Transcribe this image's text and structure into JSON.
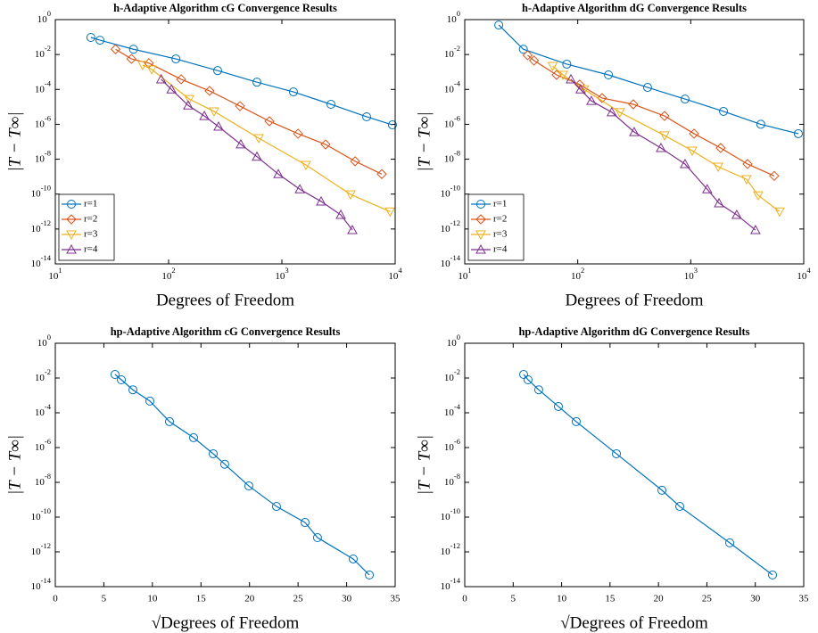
{
  "chart_data": [
    {
      "type": "line",
      "title": "h-Adaptive Algorithm cG Convergence Results",
      "xlabel": "Degrees of Freedom",
      "ylabel": "|T − T∞|",
      "xscale": "log",
      "yscale": "log",
      "xlim": [
        10,
        10000
      ],
      "ylim": [
        1e-14,
        1
      ],
      "xticks": [
        {
          "value": 10,
          "label": "10",
          "exponent": "1"
        },
        {
          "value": 100,
          "label": "10",
          "exponent": "2"
        },
        {
          "value": 1000,
          "label": "10",
          "exponent": "3"
        },
        {
          "value": 10000,
          "label": "10",
          "exponent": "4"
        }
      ],
      "yticks": [
        {
          "value": 1,
          "label": "10",
          "exponent": "0"
        },
        {
          "value": 0.01,
          "label": "10",
          "exponent": "-2"
        },
        {
          "value": 0.0001,
          "label": "10",
          "exponent": "-4"
        },
        {
          "value": 1e-06,
          "label": "10",
          "exponent": "-6"
        },
        {
          "value": 1e-08,
          "label": "10",
          "exponent": "-8"
        },
        {
          "value": 1e-10,
          "label": "10",
          "exponent": "-10"
        },
        {
          "value": 1e-12,
          "label": "10",
          "exponent": "-12"
        },
        {
          "value": 1e-14,
          "label": "10",
          "exponent": "-14"
        }
      ],
      "legend": "lower left",
      "series": [
        {
          "name": "r=1",
          "color": "#0072BD",
          "marker": "circle",
          "x": [
            20.6,
            24.8,
            49,
            116,
            271,
            602,
            1265,
            2710,
            5600,
            9460
          ],
          "values": [
            0.095,
            0.066,
            0.02,
            0.0056,
            0.0012,
            0.00026,
            7.2e-05,
            1.4e-05,
            2.7e-06,
            9.3e-07
          ]
        },
        {
          "name": "r=2",
          "color": "#D95319",
          "marker": "diamond",
          "x": [
            34,
            47,
            67,
            129,
            230,
            427,
            776,
            1390,
            2430,
            4430,
            7620
          ],
          "values": [
            0.02,
            0.0056,
            0.0032,
            0.00038,
            8.2e-05,
            1.1e-05,
            1.5e-06,
            2.9e-07,
            7e-08,
            7.6e-09,
            1.4e-09
          ]
        },
        {
          "name": "r=3",
          "color": "#EDB120",
          "marker": "triangle-down",
          "x": [
            59,
            71,
            152,
            252,
            624,
            1630,
            4040,
            9000
          ],
          "values": [
            0.0025,
            0.0014,
            2.8e-05,
            5.5e-06,
            1.6e-07,
            4.7e-09,
            9.6e-11,
            1e-11
          ]
        },
        {
          "name": "r=4",
          "color": "#7E2F8E",
          "marker": "triangle-up",
          "x": [
            86,
            106,
            149,
            207,
            276,
            434,
            602,
            931,
            1440,
            2220,
            3310,
            4190
          ],
          "values": [
            0.00038,
            0.0001,
            1.2e-05,
            3e-06,
            7.4e-07,
            7.1e-08,
            1.4e-08,
            1.4e-09,
            1.9e-10,
            3.8e-11,
            6.5e-12,
            8.7e-13
          ]
        }
      ]
    },
    {
      "type": "line",
      "title": "h-Adaptive Algorithm dG Convergence Results",
      "xlabel": "Degrees of Freedom",
      "ylabel": "|T − T∞|",
      "xscale": "log",
      "yscale": "log",
      "xlim": [
        10,
        10000
      ],
      "ylim": [
        1e-14,
        1
      ],
      "xticks": [
        {
          "value": 10,
          "label": "10",
          "exponent": "1"
        },
        {
          "value": 100,
          "label": "10",
          "exponent": "2"
        },
        {
          "value": 1000,
          "label": "10",
          "exponent": "3"
        },
        {
          "value": 10000,
          "label": "10",
          "exponent": "4"
        }
      ],
      "yticks": [
        {
          "value": 1,
          "label": "10",
          "exponent": "0"
        },
        {
          "value": 0.01,
          "label": "10",
          "exponent": "-2"
        },
        {
          "value": 0.0001,
          "label": "10",
          "exponent": "-4"
        },
        {
          "value": 1e-06,
          "label": "10",
          "exponent": "-6"
        },
        {
          "value": 1e-08,
          "label": "10",
          "exponent": "-8"
        },
        {
          "value": 1e-10,
          "label": "10",
          "exponent": "-10"
        },
        {
          "value": 1e-12,
          "label": "10",
          "exponent": "-12"
        },
        {
          "value": 1e-14,
          "label": "10",
          "exponent": "-14"
        }
      ],
      "legend": "lower left",
      "series": [
        {
          "name": "r=1",
          "color": "#0072BD",
          "marker": "circle",
          "x": [
            20,
            33,
            80,
            187,
            415,
            890,
            1950,
            4170,
            8960
          ],
          "values": [
            0.49,
            0.02,
            0.0028,
            0.00068,
            0.00013,
            2.8e-05,
            5.5e-06,
            1e-06,
            2.9e-07
          ]
        },
        {
          "name": "r=2",
          "color": "#D95319",
          "marker": "diamond",
          "x": [
            36,
            41,
            65,
            104,
            164,
            310,
            586,
            1070,
            1840,
            3180,
            5480
          ],
          "values": [
            0.0091,
            0.0045,
            0.00068,
            0.00019,
            3.2e-05,
            1.4e-05,
            3e-06,
            2.9e-07,
            4.4e-08,
            5.3e-09,
            1.1e-09
          ]
        },
        {
          "name": "r=3",
          "color": "#EDB120",
          "marker": "triangle-down",
          "x": [
            60,
            74,
            114,
            236,
            586,
            1030,
            1750,
            3120,
            3950,
            6110
          ],
          "values": [
            0.0022,
            0.00068,
            0.0001,
            4.9e-06,
            2.3e-07,
            3.1e-08,
            3.7e-09,
            7.1e-10,
            8.5e-11,
            1e-11
          ]
        },
        {
          "name": "r=4",
          "color": "#7E2F8E",
          "marker": "triangle-up",
          "x": [
            87,
            106,
            132,
            200,
            316,
            545,
            890,
            1400,
            1780,
            2550,
            3740
          ],
          "values": [
            0.00038,
            0.0001,
            2.2e-05,
            4.9e-06,
            3.6e-07,
            4.4e-08,
            5.3e-09,
            1.9e-10,
            3e-11,
            6.5e-12,
            8.7e-13
          ]
        }
      ]
    },
    {
      "type": "line",
      "title": "hp-Adaptive Algorithm cG Convergence Results",
      "xlabel": "√Degrees of Freedom",
      "ylabel": "|T − T∞|",
      "yscale": "log",
      "xlim": [
        0,
        35
      ],
      "ylim": [
        1e-14,
        1
      ],
      "xticks": [
        0,
        5,
        10,
        15,
        20,
        25,
        30,
        35
      ],
      "yticks": [
        {
          "value": 1,
          "label": "10",
          "exponent": "0"
        },
        {
          "value": 0.01,
          "label": "10",
          "exponent": "-2"
        },
        {
          "value": 0.0001,
          "label": "10",
          "exponent": "-4"
        },
        {
          "value": 1e-06,
          "label": "10",
          "exponent": "-6"
        },
        {
          "value": 1e-08,
          "label": "10",
          "exponent": "-8"
        },
        {
          "value": 1e-10,
          "label": "10",
          "exponent": "-10"
        },
        {
          "value": 1e-12,
          "label": "10",
          "exponent": "-12"
        },
        {
          "value": 1e-14,
          "label": "10",
          "exponent": "-14"
        }
      ],
      "color": "#0072BD",
      "marker": "circle",
      "x": [
        6.15,
        6.8,
        7.99,
        9.74,
        11.76,
        14.24,
        16.26,
        17.45,
        19.93,
        22.78,
        25.72,
        27.0,
        30.68,
        32.34
      ],
      "values": [
        0.016,
        0.0079,
        0.0021,
        0.00047,
        3.1e-05,
        3.7e-06,
        4.4e-07,
        1.1e-07,
        6.2e-09,
        4.1e-10,
        4.9e-11,
        6.6e-12,
        3.9e-13,
        4.7e-14
      ]
    },
    {
      "type": "line",
      "title": "hp-Adaptive Algorithm dG Convergence Results",
      "xlabel": "√Degrees of Freedom",
      "ylabel": "|T − T∞|",
      "yscale": "log",
      "xlim": [
        0,
        35
      ],
      "ylim": [
        1e-14,
        1
      ],
      "xticks": [
        0,
        5,
        10,
        15,
        20,
        25,
        30,
        35
      ],
      "yticks": [
        {
          "value": 1,
          "label": "10",
          "exponent": "0"
        },
        {
          "value": 0.01,
          "label": "10",
          "exponent": "-2"
        },
        {
          "value": 0.0001,
          "label": "10",
          "exponent": "-4"
        },
        {
          "value": 1e-06,
          "label": "10",
          "exponent": "-6"
        },
        {
          "value": 1e-08,
          "label": "10",
          "exponent": "-8"
        },
        {
          "value": 1e-10,
          "label": "10",
          "exponent": "-10"
        },
        {
          "value": 1e-12,
          "label": "10",
          "exponent": "-12"
        },
        {
          "value": 1e-14,
          "label": "10",
          "exponent": "-14"
        }
      ],
      "color": "#0072BD",
      "marker": "circle",
      "x": [
        6.08,
        6.54,
        7.64,
        9.67,
        11.51,
        15.66,
        20.36,
        22.2,
        27.36,
        31.78
      ],
      "values": [
        0.016,
        0.0079,
        0.0021,
        0.00023,
        3.1e-05,
        4.4e-07,
        3.5e-09,
        4.1e-10,
        3.3e-12,
        4.7e-14
      ]
    }
  ]
}
